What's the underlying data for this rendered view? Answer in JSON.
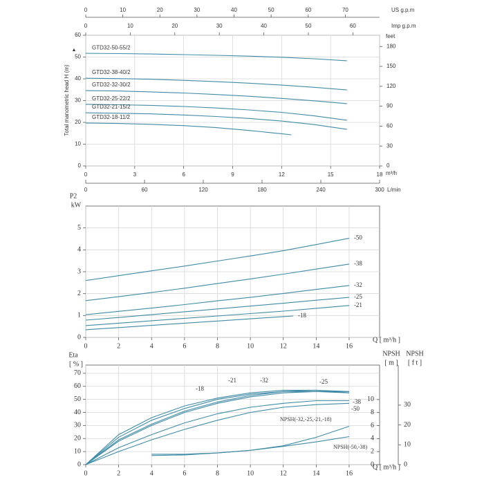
{
  "chart_data": [
    {
      "type": "line",
      "ylabel": "Total manometric head H (m)",
      "xlabel": "m³/h",
      "xlim": [
        0,
        18
      ],
      "xticks": [
        0,
        3,
        6,
        9,
        12,
        15,
        18
      ],
      "ylim": [
        0,
        60
      ],
      "yticks": [
        0,
        10,
        20,
        30,
        40,
        50,
        60
      ],
      "x2label": "US g.p.m",
      "x2lim": [
        0,
        79.25
      ],
      "x2ticks": [
        0,
        10,
        20,
        30,
        40,
        50,
        60,
        70
      ],
      "x3label": "Imp g.p.m",
      "x3lim": [
        0,
        66
      ],
      "x3ticks": [
        0,
        10,
        20,
        30,
        40,
        50,
        60
      ],
      "x4label": "L/min",
      "x4lim": [
        0,
        300
      ],
      "x4ticks": [
        0,
        60,
        120,
        180,
        240,
        300
      ],
      "y2label": "feet",
      "y2lim": [
        0,
        196.9
      ],
      "y2ticks": [
        0,
        30,
        60,
        90,
        120,
        150,
        180
      ],
      "grid": true,
      "series": [
        {
          "name": "GTD32-50-55/2",
          "color": "#3f8aa6",
          "x": [
            0,
            2,
            4,
            6,
            8,
            10,
            12,
            14,
            16
          ],
          "values": [
            51.7,
            51.6,
            51.4,
            51.1,
            50.8,
            50.4,
            49.9,
            49.2,
            48.3
          ]
        },
        {
          "name": "GTD32-38-40/2",
          "color": "#3f8aa6",
          "x": [
            0,
            2,
            4,
            6,
            8,
            10,
            12,
            14,
            16
          ],
          "values": [
            40.3,
            40.1,
            39.8,
            39.3,
            38.7,
            38,
            37.1,
            36.1,
            34.9
          ]
        },
        {
          "name": "GTD32-32-30/2",
          "color": "#3f8aa6",
          "x": [
            0,
            2,
            4,
            6,
            8,
            10,
            12,
            14,
            16
          ],
          "values": [
            34.6,
            34.4,
            34,
            33.5,
            32.8,
            32,
            31,
            29.9,
            28.6
          ]
        },
        {
          "name": "GTD32-25-22/2",
          "color": "#3f8aa6",
          "x": [
            0,
            2,
            4,
            6,
            8,
            10,
            12,
            14,
            16
          ],
          "values": [
            28.3,
            28.1,
            27.8,
            27.3,
            26.6,
            25.7,
            24.6,
            23,
            21
          ]
        },
        {
          "name": "GTD32-21-15/2",
          "color": "#3f8aa6",
          "x": [
            0,
            2,
            4,
            6,
            8,
            10,
            12,
            14,
            16
          ],
          "values": [
            24.4,
            24.2,
            23.9,
            23.4,
            22.7,
            21.8,
            20.6,
            19,
            16.8
          ]
        },
        {
          "name": "GTD32-18-11/2",
          "color": "#3f8aa6",
          "x": [
            0,
            2,
            4,
            6,
            8,
            10,
            12,
            12.6
          ],
          "values": [
            19.7,
            19.5,
            19.1,
            18.5,
            17.6,
            16.3,
            14.8,
            14.3
          ]
        }
      ]
    },
    {
      "type": "line",
      "ylabel": "P2",
      "yunit": "kW",
      "xlabel": "Q [ m³/h ]",
      "xlim": [
        0,
        17.85
      ],
      "xticks": [
        0,
        2,
        4,
        6,
        8,
        10,
        12,
        14,
        16
      ],
      "ylim": [
        0,
        6
      ],
      "yticks": [
        0,
        1,
        2,
        3,
        4,
        5
      ],
      "grid": true,
      "series": [
        {
          "name": "-50",
          "color": "#3f8aa6",
          "x": [
            0,
            2,
            4,
            6,
            8,
            10,
            12,
            14,
            16
          ],
          "values": [
            2.6,
            2.82,
            3.04,
            3.26,
            3.49,
            3.72,
            3.96,
            4.24,
            4.53
          ]
        },
        {
          "name": "-38",
          "color": "#3f8aa6",
          "x": [
            0,
            2,
            4,
            6,
            8,
            10,
            12,
            14,
            16
          ],
          "values": [
            1.68,
            1.86,
            2.05,
            2.25,
            2.46,
            2.67,
            2.89,
            3.12,
            3.35
          ]
        },
        {
          "name": "-32",
          "color": "#3f8aa6",
          "x": [
            0,
            2,
            4,
            6,
            8,
            10,
            12,
            14,
            16
          ],
          "values": [
            1.04,
            1.19,
            1.34,
            1.5,
            1.67,
            1.83,
            2.01,
            2.19,
            2.37
          ]
        },
        {
          "name": "-25",
          "color": "#3f8aa6",
          "x": [
            0,
            2,
            4,
            6,
            8,
            10,
            12,
            14,
            16
          ],
          "values": [
            0.79,
            0.91,
            1.04,
            1.17,
            1.3,
            1.43,
            1.56,
            1.7,
            1.83
          ]
        },
        {
          "name": "-21",
          "color": "#3f8aa6",
          "x": [
            0,
            2,
            4,
            6,
            8,
            10,
            12,
            14,
            16
          ],
          "values": [
            0.54,
            0.65,
            0.76,
            0.87,
            0.98,
            1.09,
            1.2,
            1.33,
            1.46
          ]
        },
        {
          "name": "-18",
          "color": "#3f8aa6",
          "x": [
            0,
            2,
            4,
            6,
            8,
            10,
            12,
            12.6
          ],
          "values": [
            0.35,
            0.45,
            0.55,
            0.65,
            0.75,
            0.85,
            0.95,
            0.98
          ]
        }
      ]
    },
    {
      "type": "line",
      "ylabel": "Eta",
      "yunit": "[ % ]",
      "xlabel": "Q [ m³/h ]",
      "y2label": "NPSH",
      "y2unit": "[ m ]",
      "y3label": "NPSH",
      "y3unit": "[ f t ]",
      "xlim": [
        0,
        17.85
      ],
      "xticks": [
        0,
        2,
        4,
        6,
        8,
        10,
        12,
        14,
        16
      ],
      "ylim": [
        0,
        76.3
      ],
      "yticks": [
        0,
        10,
        20,
        30,
        40,
        50,
        60,
        70
      ],
      "y2lim": [
        0,
        15.3
      ],
      "y2ticks": [
        0,
        2,
        4,
        6,
        8,
        10
      ],
      "y3lim": [
        0,
        50.2
      ],
      "y3ticks": [
        0,
        10,
        20,
        30
      ],
      "grid": true,
      "series": [
        {
          "name": "-18",
          "color": "#3f8aa6",
          "x": [
            0,
            2,
            4,
            6,
            8,
            10,
            12,
            14,
            16
          ],
          "values": [
            0,
            23,
            36,
            45,
            51,
            55,
            57,
            57,
            55
          ]
        },
        {
          "name": "-21",
          "color": "#3f8aa6",
          "x": [
            0,
            2,
            4,
            6,
            8,
            10,
            12,
            14,
            16
          ],
          "values": [
            0,
            21,
            34,
            43,
            50,
            54,
            56,
            56,
            55
          ]
        },
        {
          "name": "-32",
          "color": "#3f8aa6",
          "x": [
            0,
            2,
            4,
            6,
            8,
            10,
            12,
            14,
            16
          ],
          "values": [
            0,
            19,
            31,
            41,
            48,
            53,
            56,
            57,
            56
          ]
        },
        {
          "name": "-25",
          "color": "#3f8aa6",
          "x": [
            0,
            2,
            4,
            6,
            8,
            10,
            12,
            14,
            16
          ],
          "values": [
            0,
            18,
            30,
            40,
            47,
            52,
            55,
            56,
            56
          ]
        },
        {
          "name": "-38",
          "color": "#3f8aa6",
          "x": [
            0,
            2,
            4,
            6,
            8,
            10,
            12,
            14,
            16
          ],
          "values": [
            0,
            13,
            23,
            32,
            39,
            44,
            47,
            49,
            49
          ]
        },
        {
          "name": "-50",
          "color": "#3f8aa6",
          "x": [
            0,
            2,
            4,
            6,
            8,
            10,
            12,
            14,
            16
          ],
          "values": [
            0,
            10,
            19,
            27,
            34,
            40,
            44,
            46,
            47
          ]
        },
        {
          "name": "NPSH(-32,-25,-21,-18)",
          "color": "#3f8aa6",
          "axis": "y2",
          "x": [
            4,
            6,
            8,
            10,
            12,
            14,
            16
          ],
          "values": [
            1.6,
            1.6,
            1.8,
            2.2,
            2.9,
            4.2,
            5.9
          ]
        },
        {
          "name": "NPSH(-50,-38)",
          "color": "#3f8aa6",
          "axis": "y2",
          "x": [
            4,
            6,
            8,
            10,
            12,
            14,
            16
          ],
          "values": [
            1.4,
            1.5,
            1.8,
            2.2,
            2.8,
            3.5,
            4.3
          ]
        }
      ]
    }
  ]
}
